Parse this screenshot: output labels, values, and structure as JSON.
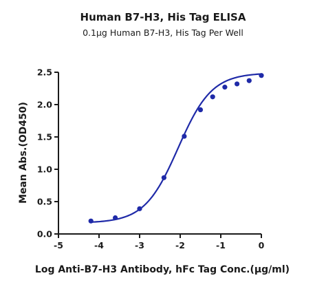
{
  "chart_data": {
    "type": "scatter",
    "title": "Human B7-H3, His Tag ELISA",
    "subtitle": "0.1μg Human B7-H3, His Tag Per Well",
    "xlabel": "Log Anti-B7-H3 Antibody, hFc Tag Conc.(μg/ml)",
    "ylabel": "Mean Abs.(OD450)",
    "xlim": [
      -5,
      0
    ],
    "ylim": [
      0,
      2.5
    ],
    "x_ticks": [
      -5,
      -4,
      -3,
      -2,
      -1,
      0
    ],
    "x_tick_labels": [
      "-5",
      "-4",
      "-3",
      "-2",
      "-1",
      "0"
    ],
    "y_ticks": [
      0,
      0.5,
      1.0,
      1.5,
      2.0,
      2.5
    ],
    "y_tick_labels": [
      "0.0",
      "0.5",
      "1.0",
      "1.5",
      "2.0",
      "2.5"
    ],
    "grid": false,
    "legend": "none",
    "color": "#1f2aa8",
    "fit": "sigmoidal 4PL",
    "series": [
      {
        "x": [
          -4.2,
          -3.6,
          -3.0,
          -2.4,
          -1.9,
          -1.5,
          -1.2,
          -0.9,
          -0.6,
          -0.3,
          0.0
        ],
        "y": [
          0.2,
          0.25,
          0.39,
          0.87,
          1.51,
          1.92,
          2.12,
          2.27,
          2.32,
          2.37,
          2.45
        ]
      }
    ]
  }
}
